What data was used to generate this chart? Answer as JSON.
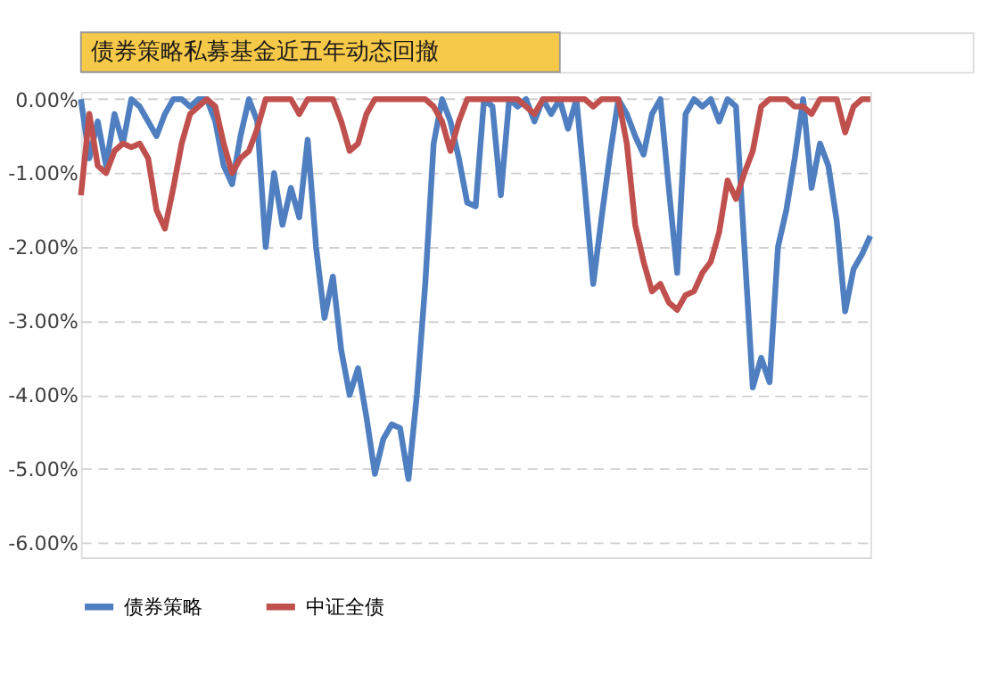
{
  "chart_data": {
    "type": "line",
    "title": "债券策略私募基金近五年动态回撤",
    "categories": [
      null,
      null,
      null,
      null,
      null,
      null,
      null,
      null,
      null,
      null,
      null,
      null,
      null,
      null,
      null,
      null,
      null,
      null,
      null,
      null,
      null,
      null,
      null,
      null,
      null,
      null,
      null,
      null,
      null,
      null,
      null,
      null,
      null,
      null,
      null,
      null,
      null,
      null,
      null,
      null,
      null,
      null,
      null,
      null,
      null,
      null,
      null,
      null,
      null,
      null,
      null,
      null,
      null,
      null,
      null,
      null,
      null,
      null,
      null,
      null,
      null,
      null,
      null,
      null,
      null,
      null,
      null,
      null,
      null,
      null,
      null,
      null,
      null,
      null,
      null,
      null,
      null,
      null,
      null,
      null,
      null,
      null,
      null,
      null,
      null,
      null,
      null,
      null,
      null,
      null,
      null,
      null,
      null,
      null,
      null
    ],
    "series": [
      {
        "name": "债券策略",
        "color": "#4f7fc0",
        "values": [
          0,
          -0.8,
          -0.3,
          -0.9,
          -0.2,
          -0.6,
          0,
          -0.1,
          -0.3,
          -0.5,
          -0.2,
          0,
          0,
          -0.1,
          0,
          0,
          -0.3,
          -0.9,
          -1.15,
          -0.5,
          0,
          -0.3,
          -2.0,
          -1.0,
          -1.7,
          -1.2,
          -1.6,
          -0.55,
          -2.0,
          -2.96,
          -2.4,
          -3.4,
          -4.0,
          -3.64,
          -4.3,
          -5.07,
          -4.6,
          -4.4,
          -4.45,
          -5.14,
          -4.0,
          -2.5,
          -0.6,
          0,
          -0.3,
          -0.8,
          -1.4,
          -1.45,
          0,
          -0.1,
          -1.3,
          0,
          -0.1,
          0,
          -0.3,
          0,
          -0.2,
          0,
          -0.4,
          0,
          -1.2,
          -2.5,
          -1.6,
          -0.75,
          0,
          -0.2,
          -0.5,
          -0.75,
          -0.2,
          0,
          -1.2,
          -2.35,
          -0.2,
          0,
          -0.1,
          0,
          -0.3,
          0,
          -0.1,
          -2.0,
          -3.9,
          -3.5,
          -3.83,
          -2.0,
          -1.5,
          -0.8,
          0,
          -1.2,
          -0.6,
          -0.9,
          -1.65,
          -2.87,
          -2.3,
          -2.1,
          -1.85
        ]
      },
      {
        "name": "中证全债",
        "color": "#c0504d",
        "values": [
          -1.3,
          -0.2,
          -0.9,
          -1.0,
          -0.7,
          -0.6,
          -0.65,
          -0.6,
          -0.8,
          -1.5,
          -1.75,
          -1.2,
          -0.6,
          -0.2,
          -0.1,
          0,
          -0.1,
          -0.6,
          -1.0,
          -0.8,
          -0.7,
          -0.4,
          0,
          0,
          0,
          0,
          -0.2,
          0,
          0,
          0,
          0,
          -0.3,
          -0.7,
          -0.6,
          -0.2,
          0,
          0,
          0,
          0,
          0,
          0,
          0,
          -0.1,
          -0.3,
          -0.7,
          -0.3,
          0,
          0,
          0,
          0,
          0,
          0,
          0,
          -0.1,
          -0.2,
          0,
          0,
          0,
          0,
          0,
          0,
          -0.1,
          0,
          0,
          0,
          -0.6,
          -1.7,
          -2.2,
          -2.6,
          -2.5,
          -2.75,
          -2.85,
          -2.65,
          -2.6,
          -2.35,
          -2.2,
          -1.8,
          -1.1,
          -1.35,
          -1.0,
          -0.7,
          -0.1,
          0,
          0,
          0,
          -0.1,
          -0.1,
          -0.2,
          0,
          0,
          0,
          -0.45,
          -0.1,
          0,
          0
        ]
      }
    ],
    "ylim": [
      -6.2,
      0.1
    ],
    "yticks": [
      {
        "value": 0,
        "label": "0.00%"
      },
      {
        "value": -1,
        "label": "-1.00%"
      },
      {
        "value": -2,
        "label": "-2.00%"
      },
      {
        "value": -3,
        "label": "-3.00%"
      },
      {
        "value": -4,
        "label": "-4.00%"
      },
      {
        "value": -5,
        "label": "-5.00%"
      },
      {
        "value": -6,
        "label": "-6.00%"
      }
    ],
    "grid": "y",
    "legend": "bottom",
    "tick_labels": "y",
    "line_style": "solid",
    "marker": "none"
  }
}
